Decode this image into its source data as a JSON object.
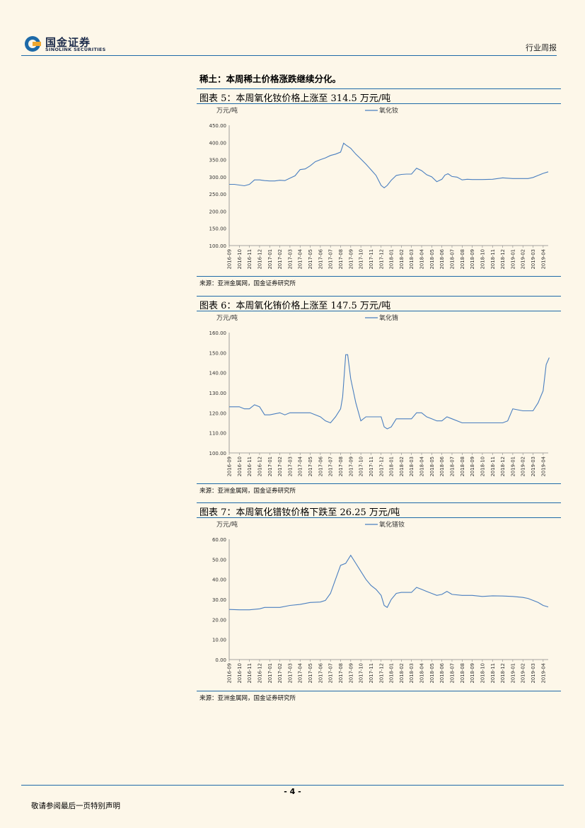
{
  "header": {
    "logo_cn": "国金证券",
    "logo_en": "SINOLINK SECURITIES",
    "report_type": "行业周报"
  },
  "section_title": "稀土：本周稀土价格涨跌继续分化。",
  "figures": [
    {
      "title": "图表 5：本周氧化钕价格上涨至 314.5 万元/吨",
      "source": "来源：亚洲金属网，国金证券研究所"
    },
    {
      "title": "图表 6：本周氧化铕价格上涨至 147.5 万元/吨",
      "source": "来源：亚洲金属网，国金证券研究所"
    },
    {
      "title": "图表 7：本周氧化镨钕价格下跌至 26.25 万元/吨",
      "source": "来源：亚洲金属网，国金证券研究所"
    }
  ],
  "footer": {
    "page_number": "- 4 -",
    "disclaimer": "敬请参阅最后一页特别声明"
  },
  "colors": {
    "line": "#4a7fc0",
    "rule": "#1e6aa8"
  },
  "chart_data": [
    {
      "type": "line",
      "unit_label": "万元/吨",
      "legend": "氧化钕",
      "legend_position": "top-center",
      "ylim": [
        100,
        450
      ],
      "yticks": [
        "100.00",
        "150.00",
        "200.00",
        "250.00",
        "300.00",
        "350.00",
        "400.00",
        "450.00"
      ],
      "xticks": [
        "2016-09",
        "2016-10",
        "2016-11",
        "2016-12",
        "2017-01",
        "2017-02",
        "2017-03",
        "2017-04",
        "2017-05",
        "2017-06",
        "2017-07",
        "2017-08",
        "2017-09",
        "2017-10",
        "2017-11",
        "2017-12",
        "2018-01",
        "2018-02",
        "2018-03",
        "2018-04",
        "2018-05",
        "2018-06",
        "2018-07",
        "2018-08",
        "2018-09",
        "2018-10",
        "2018-11",
        "2018-12",
        "2019-01",
        "2019-02",
        "2019-03",
        "2019-04"
      ],
      "series": [
        {
          "name": "氧化钕",
          "x": [
            0,
            0.5,
            1,
            1.5,
            2,
            2.5,
            3,
            3.5,
            4,
            4.5,
            5,
            5.5,
            6,
            6.5,
            7,
            7.5,
            8,
            8.5,
            9,
            9.5,
            10,
            10.5,
            11,
            11.3,
            11.5,
            12,
            12.5,
            13,
            13.5,
            14,
            14.5,
            15,
            15.3,
            15.6,
            16,
            16.5,
            17,
            17.5,
            18,
            18.5,
            19,
            19.5,
            20,
            20.5,
            21,
            21.3,
            21.6,
            22,
            22.5,
            23,
            23.5,
            24,
            25,
            26,
            27,
            28,
            29,
            29.5,
            30,
            30.5,
            31,
            31.5
          ],
          "y": [
            278,
            278,
            276,
            274,
            278,
            291,
            291,
            289,
            288,
            288,
            290,
            289,
            296,
            303,
            321,
            323,
            332,
            344,
            350,
            355,
            362,
            366,
            372,
            398,
            393,
            383,
            366,
            352,
            337,
            321,
            304,
            275,
            268,
            275,
            290,
            304,
            307,
            308,
            308,
            325,
            318,
            306,
            300,
            286,
            293,
            305,
            309,
            301,
            299,
            291,
            293,
            292,
            292,
            293,
            297,
            295,
            295,
            295,
            298,
            304,
            310,
            314.5
          ]
        }
      ]
    },
    {
      "type": "line",
      "unit_label": "万元/吨",
      "legend": "氧化铕",
      "legend_position": "top-center",
      "ylim": [
        100,
        160
      ],
      "yticks": [
        "100.00",
        "110.00",
        "120.00",
        "130.00",
        "140.00",
        "150.00",
        "160.00"
      ],
      "xticks": [
        "2016-09",
        "2016-10",
        "2016-11",
        "2016-12",
        "2017-01",
        "2017-02",
        "2017-03",
        "2017-04",
        "2017-05",
        "2017-06",
        "2017-07",
        "2017-08",
        "2017-09",
        "2017-10",
        "2017-11",
        "2017-12",
        "2018-01",
        "2018-02",
        "2018-03",
        "2018-04",
        "2018-05",
        "2018-06",
        "2018-07",
        "2018-08",
        "2018-09",
        "2018-10",
        "2018-11",
        "2018-12",
        "2019-01",
        "2019-02",
        "2019-03",
        "2019-04"
      ],
      "series": [
        {
          "name": "氧化铕",
          "x": [
            0,
            1,
            1.5,
            2,
            2.5,
            3,
            3.5,
            4,
            5,
            5.5,
            6,
            6.5,
            8,
            9,
            9.5,
            10,
            10.5,
            11,
            11.2,
            11.5,
            11.7,
            12,
            12.5,
            13,
            13.5,
            14,
            14.5,
            15,
            15.3,
            15.6,
            16,
            16.5,
            17,
            17.5,
            18,
            18.5,
            19,
            19.5,
            20,
            20.5,
            21,
            21.5,
            22,
            23,
            24,
            25,
            26,
            26.5,
            27,
            27.5,
            28,
            29,
            29.5,
            30,
            30.5,
            31,
            31.3,
            31.6
          ],
          "y": [
            123,
            123,
            122,
            122,
            124,
            123,
            119,
            119,
            120,
            119,
            120,
            120,
            120,
            118,
            116,
            115,
            118,
            122,
            128,
            149,
            149,
            137,
            125,
            116,
            118,
            118,
            118,
            118,
            113,
            112,
            113,
            117,
            117,
            117,
            117,
            120,
            120,
            118,
            117,
            116,
            116,
            118,
            117,
            115,
            115,
            115,
            115,
            115,
            115,
            116,
            122,
            121,
            121,
            121,
            125,
            131,
            144,
            147.5
          ]
        }
      ]
    },
    {
      "type": "line",
      "unit_label": "万元/吨",
      "legend": "氧化镨钕",
      "legend_position": "top-center",
      "ylim": [
        0,
        60
      ],
      "yticks": [
        "0.00",
        "10.00",
        "20.00",
        "30.00",
        "40.00",
        "50.00",
        "60.00"
      ],
      "xticks": [
        "2016-09",
        "2016-10",
        "2016-11",
        "2016-12",
        "2017-01",
        "2017-02",
        "2017-03",
        "2017-04",
        "2017-05",
        "2017-06",
        "2017-07",
        "2017-08",
        "2017-09",
        "2017-10",
        "2017-11",
        "2017-12",
        "2018-01",
        "2018-02",
        "2018-03",
        "2018-04",
        "2018-05",
        "2018-06",
        "2018-07",
        "2018-08",
        "2018-09",
        "2018-10",
        "2018-11",
        "2018-12",
        "2019-01",
        "2019-02",
        "2019-03",
        "2019-04"
      ],
      "series": [
        {
          "name": "氧化镨钕",
          "x": [
            0,
            1,
            2,
            3,
            3.5,
            4,
            5,
            6,
            7,
            8,
            9,
            9.5,
            10,
            10.5,
            11,
            11.5,
            12,
            12.5,
            13,
            13.5,
            14,
            14.5,
            15,
            15.3,
            15.6,
            16,
            16.5,
            17,
            17.5,
            18,
            18.5,
            19,
            19.5,
            20,
            20.5,
            21,
            21.5,
            22,
            23,
            24,
            25,
            26,
            27,
            28,
            29,
            29.5,
            30,
            30.5,
            31,
            31.5
          ],
          "y": [
            25,
            24.8,
            24.8,
            25.3,
            26,
            26,
            26,
            27,
            27.5,
            28.5,
            28.7,
            29.5,
            33,
            40,
            47,
            48,
            52,
            48,
            44,
            40,
            37,
            35,
            32,
            27,
            26,
            30,
            33,
            33.5,
            33.5,
            33.5,
            36,
            35,
            34,
            33,
            32,
            32.5,
            34,
            32.5,
            32,
            32,
            31.5,
            31.8,
            31.7,
            31.5,
            31,
            30.5,
            29.5,
            28.5,
            27,
            26.25
          ]
        }
      ]
    }
  ]
}
